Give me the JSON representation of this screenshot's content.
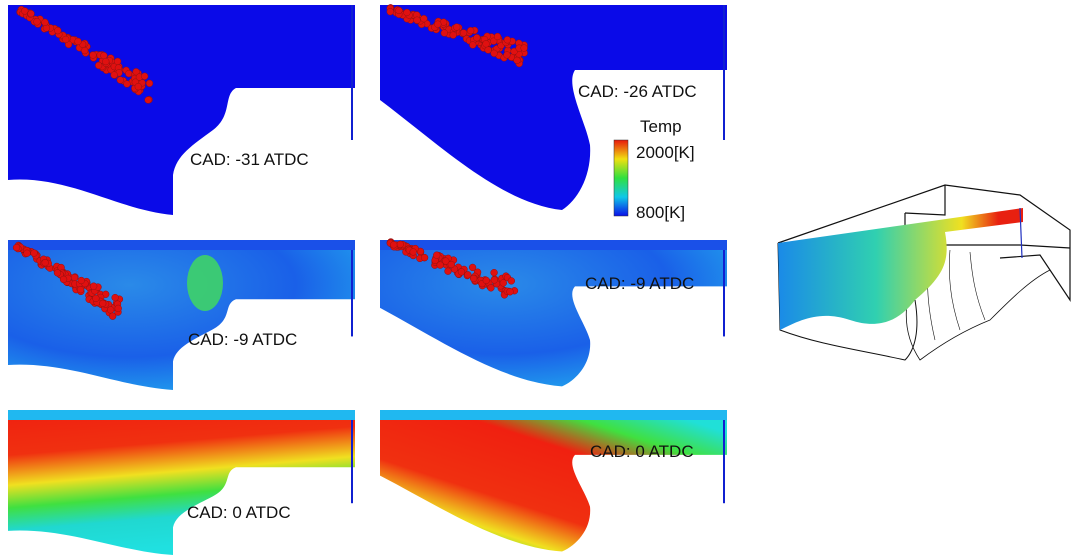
{
  "panels": [
    {
      "label": "CAD: -31 ATDC"
    },
    {
      "label": "CAD: -26 ATDC"
    },
    {
      "label": "CAD: -9 ATDC"
    },
    {
      "label": "CAD: -9 ATDC"
    },
    {
      "label": "CAD: 0 ATDC"
    },
    {
      "label": "CAD: 0 ATDC"
    }
  ],
  "legend": {
    "title": "Temp",
    "max_label": "2000[K]",
    "min_label": "800[K]"
  }
}
